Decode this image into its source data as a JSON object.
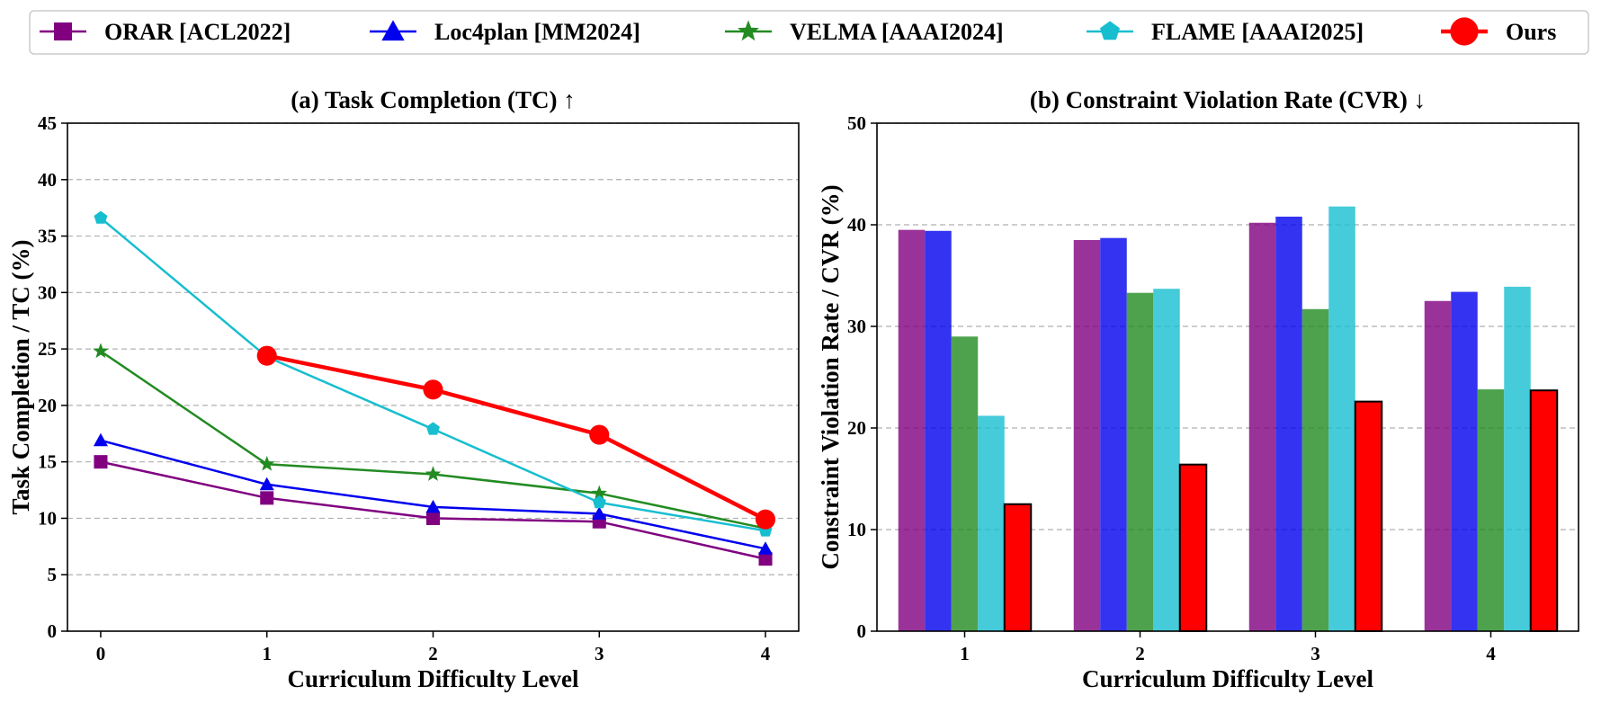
{
  "colors": {
    "ORAR": "#800080",
    "Loc4plan": "#0000ee",
    "VELMA": "#228b22",
    "FLAME": "#17becf",
    "Ours": "#ff0000"
  },
  "legend": [
    {
      "name": "ORAR [ACL2022]",
      "marker": "square"
    },
    {
      "name": "Loc4plan [MM2024]",
      "marker": "triangle"
    },
    {
      "name": "VELMA [AAAI2024]",
      "marker": "star"
    },
    {
      "name": "FLAME [AAAI2025]",
      "marker": "pentagon"
    },
    {
      "name": "Ours",
      "marker": "circle"
    }
  ],
  "chart_data": [
    {
      "type": "line",
      "title": "(a) Task Completion (TC) ↑",
      "xlabel": "Curriculum Difficulty Level",
      "ylabel": "Task Completion / TC (%)",
      "x_ticks": [
        "0",
        "1",
        "2",
        "3",
        "4"
      ],
      "y_ticks": [
        "0",
        "5",
        "10",
        "15",
        "20",
        "25",
        "30",
        "35",
        "40",
        "45"
      ],
      "xlim": [
        -0.2,
        4.2
      ],
      "ylim": [
        0,
        45
      ],
      "grid": "horizontal dashed",
      "series": [
        {
          "name": "ORAR [ACL2022]",
          "x": [
            0,
            1,
            2,
            3,
            4
          ],
          "y": [
            15.0,
            11.8,
            10.0,
            9.7,
            6.4
          ]
        },
        {
          "name": "Loc4plan [MM2024]",
          "x": [
            0,
            1,
            2,
            3,
            4
          ],
          "y": [
            16.9,
            13.0,
            11.0,
            10.4,
            7.3
          ]
        },
        {
          "name": "VELMA [AAAI2024]",
          "x": [
            0,
            1,
            2,
            3,
            4
          ],
          "y": [
            24.8,
            14.8,
            13.9,
            12.2,
            9.1
          ]
        },
        {
          "name": "FLAME [AAAI2025]",
          "x": [
            0,
            1,
            2,
            3,
            4
          ],
          "y": [
            36.6,
            24.3,
            17.9,
            11.4,
            8.9
          ]
        },
        {
          "name": "Ours",
          "x": [
            1,
            2,
            3,
            4
          ],
          "y": [
            24.4,
            21.4,
            17.4,
            9.9
          ]
        }
      ]
    },
    {
      "type": "bar",
      "title": "(b) Constraint Violation Rate (CVR) ↓",
      "xlabel": "Curriculum Difficulty Level",
      "ylabel": "Constraint Violation Rate / CVR (%)",
      "categories": [
        "1",
        "2",
        "3",
        "4"
      ],
      "y_ticks": [
        "0",
        "10",
        "20",
        "30",
        "40",
        "50"
      ],
      "ylim": [
        0,
        50
      ],
      "grid": "horizontal dashed",
      "series": [
        {
          "name": "ORAR [ACL2022]",
          "values": [
            39.5,
            38.5,
            40.2,
            32.5
          ]
        },
        {
          "name": "Loc4plan [MM2024]",
          "values": [
            39.4,
            38.7,
            40.8,
            33.4
          ]
        },
        {
          "name": "VELMA [AAAI2024]",
          "values": [
            29.0,
            33.3,
            31.7,
            23.8
          ]
        },
        {
          "name": "FLAME [AAAI2025]",
          "values": [
            21.2,
            33.7,
            41.8,
            33.9
          ]
        },
        {
          "name": "Ours",
          "values": [
            12.5,
            16.4,
            22.6,
            23.7
          ]
        }
      ]
    }
  ]
}
